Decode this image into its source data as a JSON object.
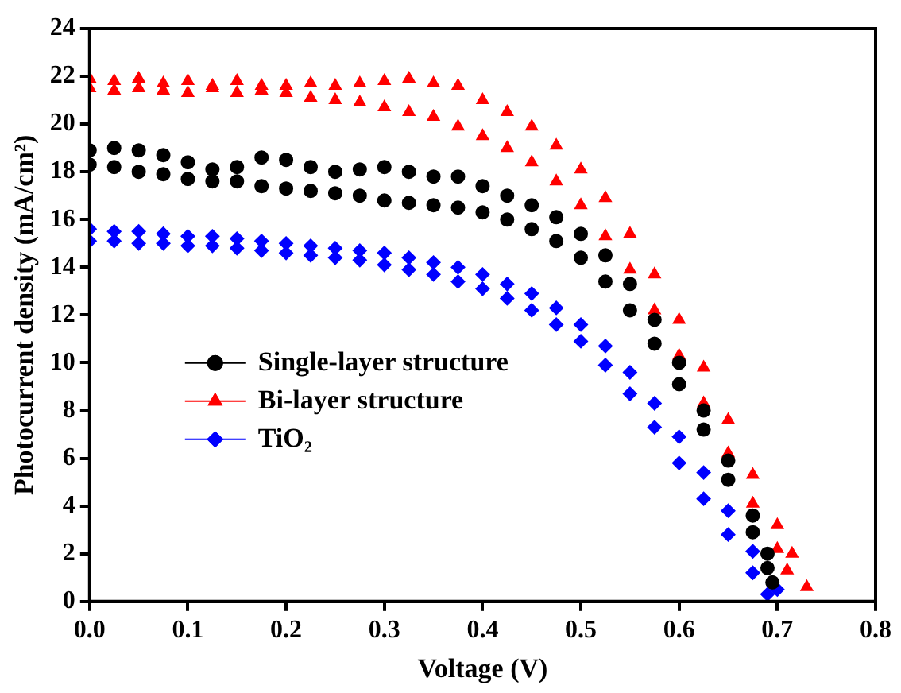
{
  "chart_data": {
    "type": "scatter",
    "xlabel": "Voltage (V)",
    "ylabel": "Photocurrent density (mA/cm²)",
    "xlim": [
      0,
      0.8
    ],
    "xticks": [
      {
        "value": 0,
        "label": "0.0"
      },
      0.1,
      0.2,
      0.3,
      0.4,
      0.5,
      0.6,
      0.7,
      0.8
    ],
    "ylim": [
      0,
      24
    ],
    "yticks": [
      0,
      2,
      4,
      6,
      8,
      10,
      12,
      14,
      16,
      18,
      20,
      22,
      24
    ],
    "grid": false,
    "legend": "bottom left",
    "series": [
      {
        "name": "Single-layer structure",
        "color": "#000000",
        "marker": "circle",
        "x": [
          0,
          0.025,
          0.05,
          0.075,
          0.1,
          0.125,
          0.15,
          0.175,
          0.2,
          0.225,
          0.25,
          0.275,
          0.3,
          0.325,
          0.35,
          0.375,
          0.4,
          0.425,
          0.45,
          0.475,
          0.5,
          0.525,
          0.55,
          0.575,
          0.6,
          0.625,
          0.65,
          0.675,
          0.69,
          0.695,
          0,
          0.025,
          0.05,
          0.075,
          0.1,
          0.125,
          0.15,
          0.175,
          0.2,
          0.225,
          0.25,
          0.275,
          0.3,
          0.325,
          0.35,
          0.375,
          0.4,
          0.425,
          0.45,
          0.475,
          0.5,
          0.525,
          0.55,
          0.575,
          0.6,
          0.625,
          0.65,
          0.675,
          0.69
        ],
        "values": [
          18.9,
          19.0,
          18.9,
          18.7,
          18.4,
          18.1,
          18.2,
          18.6,
          18.5,
          18.2,
          18.0,
          18.1,
          18.2,
          18.0,
          17.8,
          17.8,
          17.4,
          17.0,
          16.6,
          16.1,
          15.4,
          14.5,
          13.3,
          11.8,
          10.0,
          8.0,
          5.9,
          3.6,
          2.0,
          0.8,
          18.3,
          18.2,
          18.0,
          17.9,
          17.7,
          17.6,
          17.6,
          17.4,
          17.3,
          17.2,
          17.1,
          17.0,
          16.8,
          16.7,
          16.6,
          16.5,
          16.3,
          16.0,
          15.6,
          15.1,
          14.4,
          13.4,
          12.2,
          10.8,
          9.1,
          7.2,
          5.1,
          2.9,
          1.4
        ]
      },
      {
        "name": "Bi-layer structure",
        "color": "#ff0000",
        "marker": "triangle",
        "x": [
          0,
          0.025,
          0.05,
          0.075,
          0.1,
          0.125,
          0.15,
          0.175,
          0.2,
          0.225,
          0.25,
          0.275,
          0.3,
          0.325,
          0.35,
          0.375,
          0.4,
          0.425,
          0.45,
          0.475,
          0.5,
          0.525,
          0.55,
          0.575,
          0.6,
          0.625,
          0.65,
          0.675,
          0.7,
          0.715,
          0.73,
          0,
          0.025,
          0.05,
          0.075,
          0.1,
          0.125,
          0.15,
          0.175,
          0.2,
          0.225,
          0.25,
          0.275,
          0.3,
          0.325,
          0.35,
          0.375,
          0.4,
          0.425,
          0.45,
          0.475,
          0.5,
          0.525,
          0.55,
          0.575,
          0.6,
          0.625,
          0.65,
          0.675,
          0.7,
          0.71
        ],
        "values": [
          21.9,
          21.8,
          21.9,
          21.7,
          21.8,
          21.6,
          21.8,
          21.6,
          21.6,
          21.7,
          21.6,
          21.7,
          21.8,
          21.9,
          21.7,
          21.6,
          21.0,
          20.5,
          19.9,
          19.1,
          18.1,
          16.9,
          15.4,
          13.7,
          11.8,
          9.8,
          7.6,
          5.3,
          3.2,
          2.0,
          0.6,
          21.5,
          21.4,
          21.5,
          21.4,
          21.3,
          21.5,
          21.3,
          21.4,
          21.3,
          21.1,
          21.0,
          20.9,
          20.7,
          20.5,
          20.3,
          19.9,
          19.5,
          19.0,
          18.4,
          17.6,
          16.6,
          15.3,
          13.9,
          12.2,
          10.3,
          8.3,
          6.2,
          4.1,
          2.2,
          1.3
        ]
      },
      {
        "name": "TiO₂",
        "color": "#0000ff",
        "marker": "diamond",
        "x": [
          0,
          0.025,
          0.05,
          0.075,
          0.1,
          0.125,
          0.15,
          0.175,
          0.2,
          0.225,
          0.25,
          0.275,
          0.3,
          0.325,
          0.35,
          0.375,
          0.4,
          0.425,
          0.45,
          0.475,
          0.5,
          0.525,
          0.55,
          0.575,
          0.6,
          0.625,
          0.65,
          0.675,
          0.7,
          0,
          0.025,
          0.05,
          0.075,
          0.1,
          0.125,
          0.15,
          0.175,
          0.2,
          0.225,
          0.25,
          0.275,
          0.3,
          0.325,
          0.35,
          0.375,
          0.4,
          0.425,
          0.45,
          0.475,
          0.5,
          0.525,
          0.55,
          0.575,
          0.6,
          0.625,
          0.65,
          0.675,
          0.69
        ],
        "values": [
          15.6,
          15.5,
          15.5,
          15.4,
          15.3,
          15.3,
          15.2,
          15.1,
          15.0,
          14.9,
          14.8,
          14.7,
          14.6,
          14.4,
          14.2,
          14.0,
          13.7,
          13.3,
          12.9,
          12.3,
          11.6,
          10.7,
          9.6,
          8.3,
          6.9,
          5.4,
          3.8,
          2.1,
          0.5,
          15.1,
          15.1,
          15.0,
          15.0,
          14.9,
          14.9,
          14.8,
          14.7,
          14.6,
          14.5,
          14.4,
          14.3,
          14.1,
          13.9,
          13.7,
          13.4,
          13.1,
          12.7,
          12.2,
          11.6,
          10.9,
          9.9,
          8.7,
          7.3,
          5.8,
          4.3,
          2.8,
          1.2,
          0.3
        ]
      }
    ]
  }
}
